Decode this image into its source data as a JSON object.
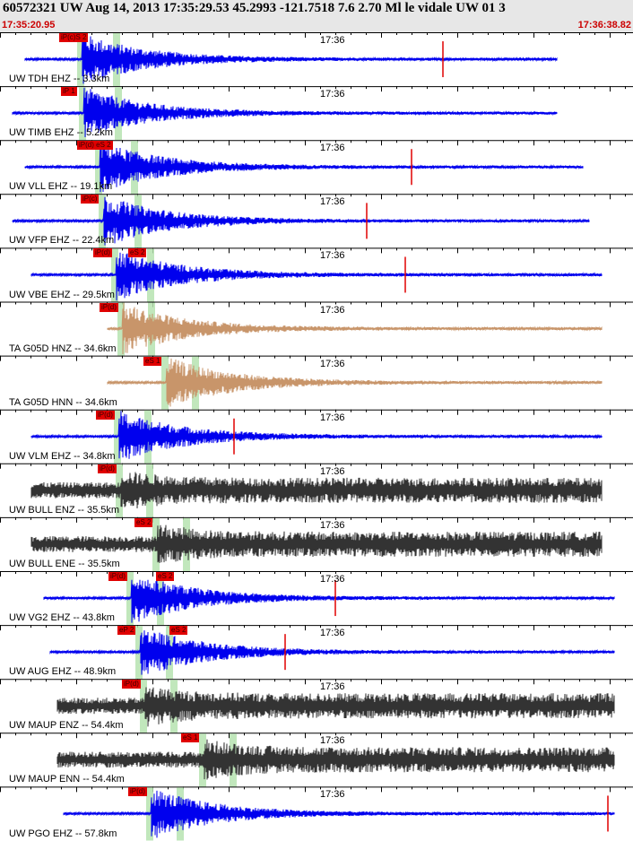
{
  "header": {
    "title": "60572321 UW Aug 14, 2013 17:35:29.53   45.2993 -121.7518  7.6 2.70 Ml le vidale UW 01   3",
    "start_time": "17:35:20.95",
    "end_time": "17:36:38.82",
    "minute_label": "17:36"
  },
  "colors": {
    "ehz": "#0000ee",
    "ta": "#c8956a",
    "horizontal": "#333333",
    "pick": "#e00000",
    "window": "#b6e3b0"
  },
  "traces": [
    {
      "label": "UW TDH EHZ -- 3.3km",
      "kind": "ehz",
      "picks": [
        "iP(c)S  2"
      ],
      "pick_x": [
        66
      ],
      "sig_start": 0.04,
      "sig_end": 0.88,
      "spike": 0.7
    },
    {
      "label": "UW TIMB EHZ -- 5.2km",
      "kind": "ehz",
      "picks": [
        "iP  1"
      ],
      "pick_x": [
        68
      ],
      "sig_start": 0.02,
      "sig_end": 0.88,
      "spike": null
    },
    {
      "label": "UW VLL EHZ -- 19.1km",
      "kind": "ehz",
      "picks": [
        "iP(d)  eS  2"
      ],
      "pick_x": [
        86
      ],
      "sig_start": 0.04,
      "sig_end": 0.92,
      "spike": 0.65
    },
    {
      "label": "UW VFP EHZ -- 22.4km",
      "kind": "ehz",
      "picks": [
        "iP(c)"
      ],
      "pick_x": [
        90
      ],
      "sig_start": 0.02,
      "sig_end": 0.93,
      "spike": 0.58
    },
    {
      "label": "UW VBE EHZ -- 29.5km",
      "kind": "ehz",
      "picks": [
        "iP(d)",
        "eS  2"
      ],
      "pick_x": [
        104,
        143
      ],
      "sig_start": 0.05,
      "sig_end": 0.95,
      "spike": 0.64
    },
    {
      "label": "TA G05D HNZ -- 34.6km",
      "kind": "ta",
      "picks": [
        "iP(d)"
      ],
      "pick_x": [
        111
      ],
      "sig_start": 0.17,
      "sig_end": 0.95,
      "spike": null
    },
    {
      "label": "TA G05D HNN -- 34.6km",
      "kind": "ta",
      "picks": [
        "eS  1"
      ],
      "pick_x": [
        160
      ],
      "sig_start": 0.17,
      "sig_end": 0.95,
      "spike": null
    },
    {
      "label": "UW VLM EHZ -- 34.8km",
      "kind": "ehz",
      "picks": [
        "iP(d)"
      ],
      "pick_x": [
        107
      ],
      "sig_start": 0.05,
      "sig_end": 0.95,
      "spike": 0.37
    },
    {
      "label": "UW BULL ENZ -- 35.5km",
      "kind": "hz",
      "picks": [
        "iP(d)"
      ],
      "pick_x": [
        109
      ],
      "sig_start": 0.05,
      "sig_end": 0.95,
      "spike": null
    },
    {
      "label": "UW BULL ENE -- 35.5km",
      "kind": "hz",
      "picks": [
        "eS  2"
      ],
      "pick_x": [
        150
      ],
      "sig_start": 0.05,
      "sig_end": 0.95,
      "spike": null
    },
    {
      "label": "UW VG2 EHZ -- 43.8km",
      "kind": "ehz",
      "picks": [
        "iP(d)",
        "eS  2"
      ],
      "pick_x": [
        121,
        174
      ],
      "sig_start": 0.07,
      "sig_end": 0.97,
      "spike": 0.53
    },
    {
      "label": "UW AUG EHZ -- 48.9km",
      "kind": "ehz",
      "picks": [
        "eP  2",
        "eS  2"
      ],
      "pick_x": [
        131,
        189
      ],
      "sig_start": 0.08,
      "sig_end": 0.97,
      "spike": 0.45
    },
    {
      "label": "UW MAUP ENZ -- 54.4km",
      "kind": "hz",
      "picks": [
        "iP(d)"
      ],
      "pick_x": [
        136
      ],
      "sig_start": 0.09,
      "sig_end": 0.97,
      "spike": null
    },
    {
      "label": "UW MAUP ENN -- 54.4km",
      "kind": "hz",
      "picks": [
        "eS  1"
      ],
      "pick_x": [
        202
      ],
      "sig_start": 0.09,
      "sig_end": 0.97,
      "spike": null
    },
    {
      "label": "UW PGO EHZ -- 57.8km",
      "kind": "ehz",
      "picks": [
        "iP(d)"
      ],
      "pick_x": [
        143
      ],
      "sig_start": 0.1,
      "sig_end": 0.97,
      "spike": 0.96
    }
  ]
}
